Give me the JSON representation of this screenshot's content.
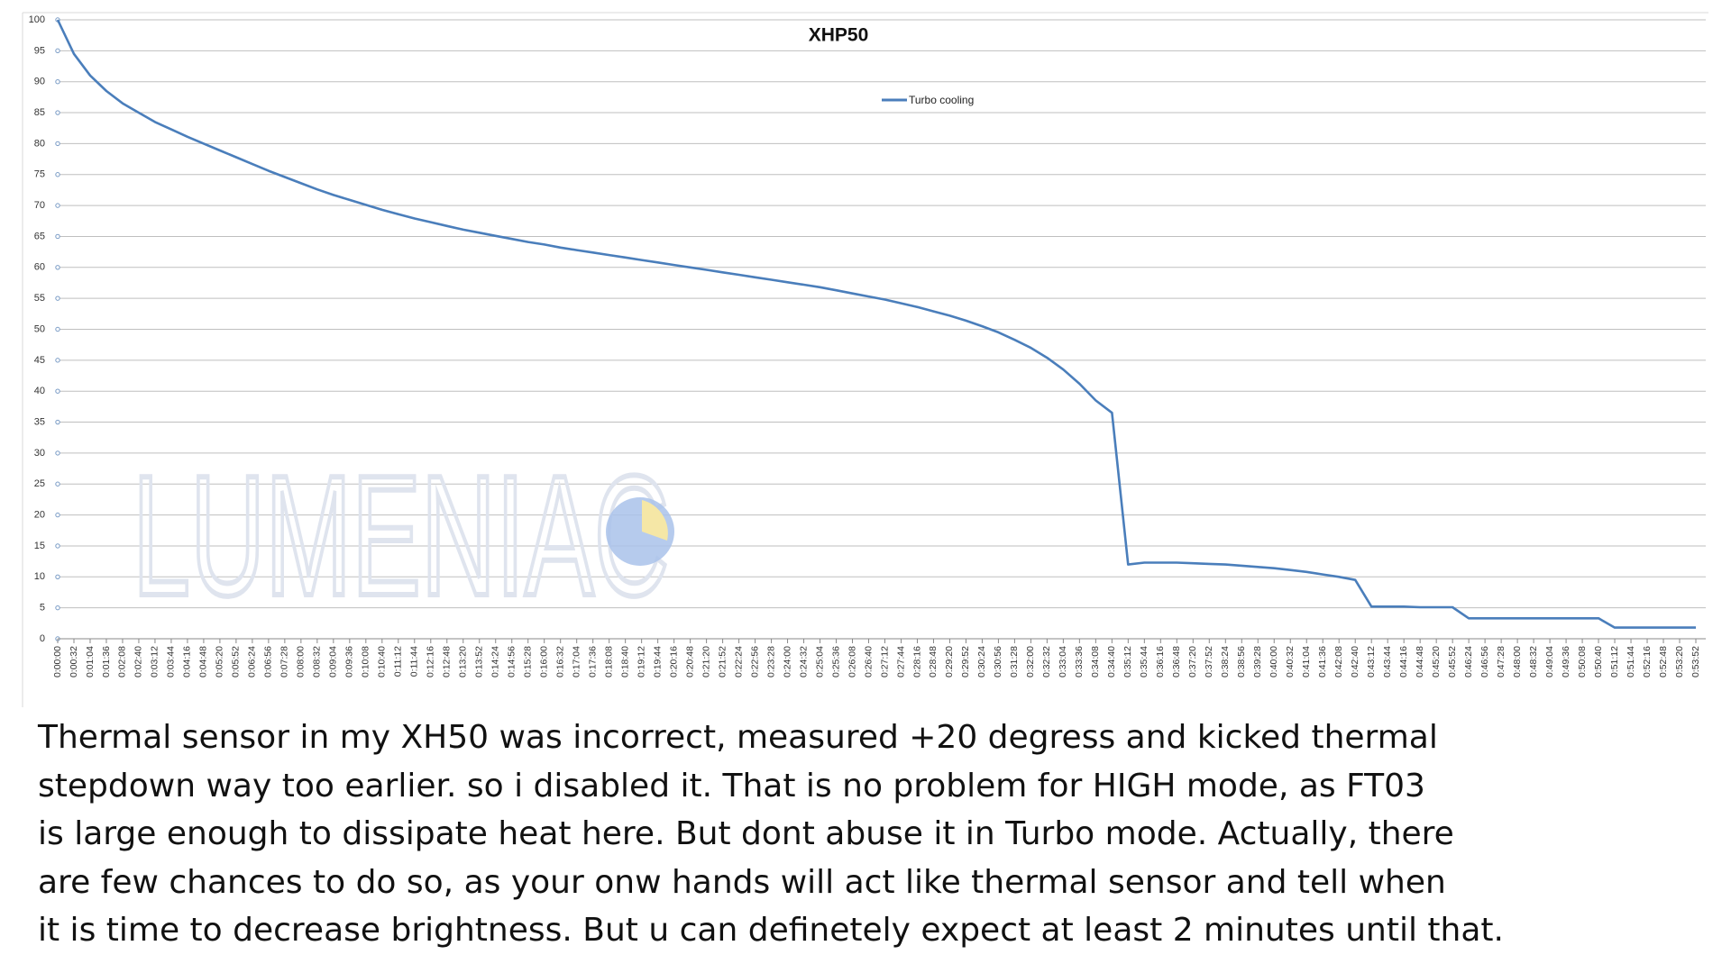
{
  "chart_data": {
    "type": "line",
    "title": "XHP50",
    "watermark": "LUMENIAC",
    "categories": [
      "0:00:00",
      "0:00:32",
      "0:01:04",
      "0:01:36",
      "0:02:08",
      "0:02:40",
      "0:03:12",
      "0:03:44",
      "0:04:16",
      "0:04:48",
      "0:05:20",
      "0:05:52",
      "0:06:24",
      "0:06:56",
      "0:07:28",
      "0:08:00",
      "0:08:32",
      "0:09:04",
      "0:09:36",
      "0:10:08",
      "0:10:40",
      "0:11:12",
      "0:11:44",
      "0:12:16",
      "0:12:48",
      "0:13:20",
      "0:13:52",
      "0:14:24",
      "0:14:56",
      "0:15:28",
      "0:16:00",
      "0:16:32",
      "0:17:04",
      "0:17:36",
      "0:18:08",
      "0:18:40",
      "0:19:12",
      "0:19:44",
      "0:20:16",
      "0:20:48",
      "0:21:20",
      "0:21:52",
      "0:22:24",
      "0:22:56",
      "0:23:28",
      "0:24:00",
      "0:24:32",
      "0:25:04",
      "0:25:36",
      "0:26:08",
      "0:26:40",
      "0:27:12",
      "0:27:44",
      "0:28:16",
      "0:28:48",
      "0:29:20",
      "0:29:52",
      "0:30:24",
      "0:30:56",
      "0:31:28",
      "0:32:00",
      "0:32:32",
      "0:33:04",
      "0:33:36",
      "0:34:08",
      "0:34:40",
      "0:35:12",
      "0:35:44",
      "0:36:16",
      "0:36:48",
      "0:37:20",
      "0:37:52",
      "0:38:24",
      "0:38:56",
      "0:39:28",
      "0:40:00",
      "0:40:32",
      "0:41:04",
      "0:41:36",
      "0:42:08",
      "0:42:40",
      "0:43:12",
      "0:43:44",
      "0:44:16",
      "0:44:48",
      "0:45:20",
      "0:45:52",
      "0:46:24",
      "0:46:56",
      "0:47:28",
      "0:48:00",
      "0:48:32",
      "0:49:04",
      "0:49:36",
      "0:50:08",
      "0:50:40",
      "0:51:12",
      "0:51:44",
      "0:52:16",
      "0:52:48",
      "0:53:20",
      "0:53:52"
    ],
    "series": [
      {
        "name": "Turbo cooling",
        "color": "#4a7ebb",
        "values": [
          100,
          94.5,
          91,
          88.5,
          86.5,
          85,
          83.5,
          82.3,
          81.1,
          80,
          78.9,
          77.8,
          76.7,
          75.6,
          74.6,
          73.6,
          72.6,
          71.7,
          70.9,
          70.1,
          69.3,
          68.6,
          67.9,
          67.3,
          66.7,
          66.1,
          65.6,
          65.1,
          64.6,
          64.1,
          63.7,
          63.2,
          62.8,
          62.4,
          62,
          61.6,
          61.2,
          60.8,
          60.4,
          60,
          59.6,
          59.2,
          58.8,
          58.4,
          58,
          57.6,
          57.2,
          56.8,
          56.3,
          55.8,
          55.3,
          54.8,
          54.2,
          53.6,
          52.9,
          52.2,
          51.4,
          50.5,
          49.5,
          48.3,
          47,
          45.4,
          43.5,
          41.2,
          38.5,
          36.5,
          12,
          12.3,
          12.3,
          12.3,
          12.2,
          12.1,
          12,
          11.8,
          11.6,
          11.4,
          11.1,
          10.8,
          10.4,
          10,
          9.5,
          5.2,
          5.2,
          5.2,
          5.1,
          5.1,
          5.1,
          3.3,
          3.3,
          3.3,
          3.3,
          3.3,
          3.3,
          3.3,
          3.3,
          3.3,
          1.8,
          1.8,
          1.8,
          1.8,
          1.8,
          1.8
        ]
      }
    ],
    "ylim": [
      0,
      100
    ],
    "yticks": [
      0,
      5,
      10,
      15,
      20,
      25,
      30,
      35,
      40,
      45,
      50,
      55,
      60,
      65,
      70,
      75,
      80,
      85,
      90,
      95,
      100
    ],
    "grid": true
  },
  "text": {
    "lines": [
      "Thermal sensor in my XH50 was incorrect, measured +20 degress and kicked thermal",
      "stepdown way too earlier. so i disabled it. That is no problem for HIGH mode, as FT03",
      "is large enough to dissipate heat here. But dont abuse it in Turbo mode.  Actually, there",
      "are few chances to do so, as your onw  hands will act like thermal sensor and tell when",
      "it is time to decrease brightness. But u can definetely expect at least 2 minutes until that."
    ]
  }
}
